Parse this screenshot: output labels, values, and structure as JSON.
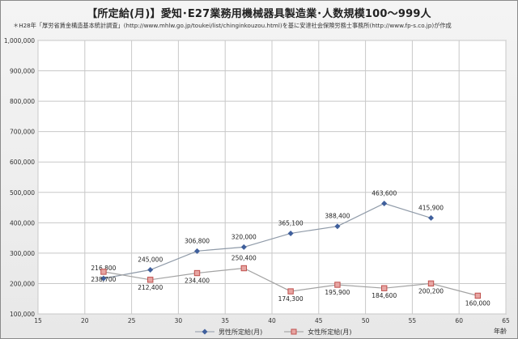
{
  "chart_data": {
    "type": "line",
    "title": "【所定給(月)】愛知･E27業務用機械器具製造業･人数規模100～999人",
    "subtitle": "＊H28年「厚労省賃金構造基本統計調査」(http://www.mhlw.go.jp/toukei/list/chinginkouzou.html)を基に安達社会保険労務士事務所(http://www.fp-s.co.jp)が作成",
    "xlabel": "年齢",
    "ylabel": "",
    "xlim": [
      15,
      65
    ],
    "ylim": [
      100000,
      1000000
    ],
    "x_ticks": [
      15,
      20,
      25,
      30,
      35,
      40,
      45,
      50,
      55,
      60,
      65
    ],
    "y_ticks": [
      100000,
      200000,
      300000,
      400000,
      500000,
      600000,
      700000,
      800000,
      900000,
      1000000
    ],
    "y_tick_labels": [
      "100,000",
      "200,000",
      "300,000",
      "400,000",
      "500,000",
      "600,000",
      "700,000",
      "800,000",
      "900,000",
      "1,000,000"
    ],
    "grid": true,
    "legend_position": "bottom",
    "series": [
      {
        "name": "男性所定給(月)",
        "color": "#3f5f9c",
        "marker": "diamond",
        "x": [
          22,
          27,
          32,
          37,
          42,
          47,
          52,
          57
        ],
        "values": [
          216800,
          245000,
          306800,
          320000,
          365100,
          388400,
          463600,
          415900
        ],
        "labels": [
          "216,800",
          "245,000",
          "306,800",
          "320,000",
          "365,100",
          "388,400",
          "463,600",
          "415,900"
        ]
      },
      {
        "name": "女性所定給(月)",
        "color": "#c0504d",
        "marker": "square",
        "x": [
          22,
          27,
          32,
          37,
          42,
          47,
          52,
          57,
          62
        ],
        "values": [
          238700,
          212400,
          234400,
          250400,
          174300,
          195900,
          184600,
          200200,
          160000
        ],
        "labels": [
          "238,700",
          "212,400",
          "234,400",
          "250,400",
          "174,300",
          "195,900",
          "184,600",
          "200,200",
          "160,000"
        ]
      }
    ]
  }
}
